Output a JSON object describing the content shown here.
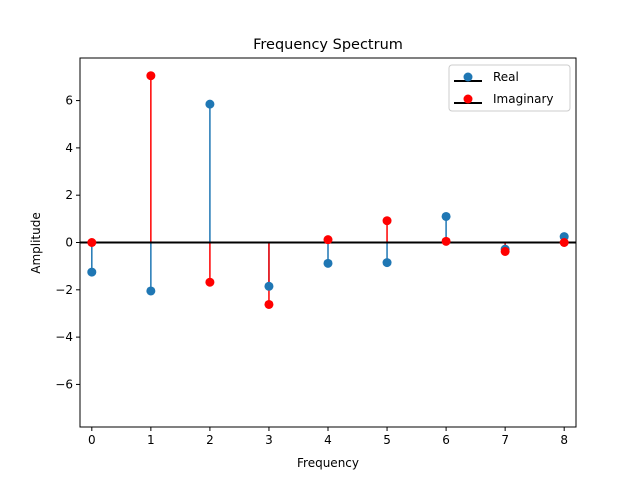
{
  "chart_data": {
    "type": "stem",
    "title": "Frequency Spectrum",
    "xlabel": "Frequency",
    "ylabel": "Amplitude",
    "xlim": [
      -0.2,
      8.2
    ],
    "ylim": [
      -7.8,
      7.8
    ],
    "xticks": [
      0,
      1,
      2,
      3,
      4,
      5,
      6,
      7,
      8
    ],
    "yticks": [
      -6,
      -4,
      -2,
      0,
      2,
      4,
      6
    ],
    "xtick_labels": [
      "0",
      "1",
      "2",
      "3",
      "4",
      "5",
      "6",
      "7",
      "8"
    ],
    "ytick_labels": [
      "−6",
      "−4",
      "−2",
      "0",
      "2",
      "4",
      "6"
    ],
    "grid": false,
    "legend_position": "top-right",
    "baseline_color": "#000000",
    "series": [
      {
        "name": "Real",
        "color": "#1f77b4",
        "x": [
          0,
          1,
          2,
          3,
          4,
          5,
          6,
          7,
          8
        ],
        "values": [
          -1.25,
          -2.05,
          5.85,
          -1.85,
          -0.88,
          -0.85,
          1.1,
          -0.28,
          0.25
        ]
      },
      {
        "name": "Imaginary",
        "color": "#ff0000",
        "x": [
          0,
          1,
          2,
          3,
          4,
          5,
          6,
          7,
          8
        ],
        "values": [
          0.0,
          7.05,
          -1.68,
          -2.62,
          0.12,
          0.92,
          0.05,
          -0.38,
          0.0
        ]
      }
    ]
  }
}
